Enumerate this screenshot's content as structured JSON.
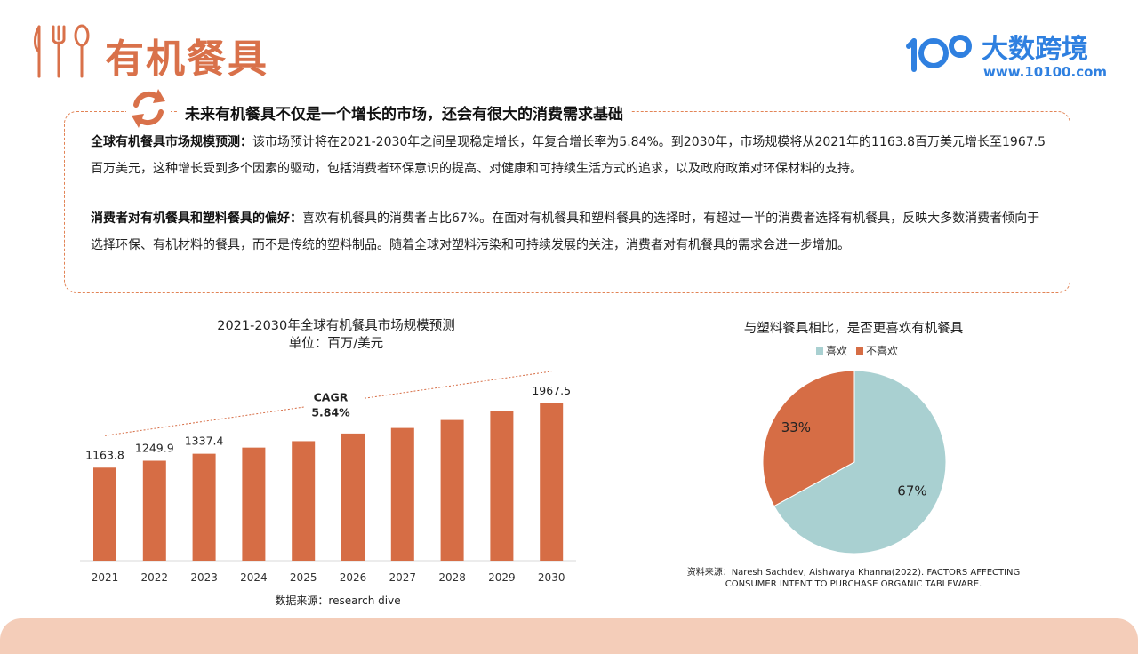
{
  "header": {
    "title": "有机餐具",
    "logo_text": "大数跨境",
    "logo_url": "www.10100.com",
    "colors": {
      "accent": "#D9714A",
      "logo_blue": "#2F80E0"
    }
  },
  "summary": {
    "subheading": "未来有机餐具不仅是一个增长的市场，还会有很大的消费需求基础",
    "p1_label": "全球有机餐具市场规模预测：",
    "p1_text": "该市场预计将在2021-2030年之间呈现稳定增长，年复合增长率为5.84%。到2030年，市场规模将从2021年的1163.8百万美元增长至1967.5百万美元，这种增长受到多个因素的驱动，包括消费者环保意识的提高、对健康和可持续生活方式的追求，以及政府政策对环保材料的支持。",
    "p2_label": "消费者对有机餐具和塑料餐具的偏好：",
    "p2_text": "喜欢有机餐具的消费者占比67%。在面对有机餐具和塑料餐具的选择时，有超过一半的消费者选择有机餐具，反映大多数消费者倾向于选择环保、有机材料的餐具，而不是传统的塑料制品。随着全球对塑料污染和可持续发展的关注，消费者对有机餐具的需求会进一步增加。"
  },
  "chart_data": [
    {
      "type": "bar",
      "title": "2021-2030年全球有机餐具市场规模预测",
      "subtitle": "单位：百万/美元",
      "categories": [
        "2021",
        "2022",
        "2023",
        "2024",
        "2025",
        "2026",
        "2027",
        "2028",
        "2029",
        "2030"
      ],
      "values": [
        1163.8,
        1249.9,
        1337.4,
        1415.0,
        1495.0,
        1590.0,
        1660.0,
        1760.0,
        1870.0,
        1967.5
      ],
      "data_labels": {
        "2021": "1163.8",
        "2022": "1249.9",
        "2023": "1337.4",
        "2030": "1967.5"
      },
      "annotation": {
        "line1": "CAGR",
        "line2": "5.84%"
      },
      "color": "#D66D45",
      "ylim": [
        0,
        2000
      ],
      "source": "数据来源：research dive"
    },
    {
      "type": "pie",
      "title": "与塑料餐具相比，是否更喜欢有机餐具",
      "legend_position": "top",
      "slices": [
        {
          "label": "喜欢",
          "value": 67,
          "display": "67%",
          "color": "#A9D0D1"
        },
        {
          "label": "不喜欢",
          "value": 33,
          "display": "33%",
          "color": "#D66D45"
        }
      ],
      "source_line1": "资料来源：Naresh Sachdev, Aishwarya Khanna(2022). FACTORS AFFECTING",
      "source_line2": "CONSUMER INTENT TO PURCHASE ORGANIC TABLEWARE."
    }
  ]
}
